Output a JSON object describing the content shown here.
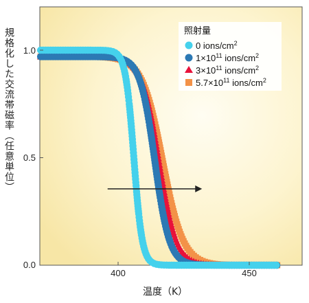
{
  "chart_data": {
    "type": "scatter",
    "xlabel": "温度（K）",
    "ylabel": "規格化した交流帯磁率（任意単位）",
    "xlim": [
      370,
      470
    ],
    "ylim": [
      0,
      1.2
    ],
    "xticks": [
      "400",
      "450"
    ],
    "yticks": [
      "0.0",
      "0.5",
      "1.0"
    ],
    "grid": false,
    "legend_position": "top-right",
    "legend_title": "照射量",
    "series": [
      {
        "name": "0 ions/cm2",
        "marker": "circle",
        "color": "#45d1ec",
        "x0": 406,
        "width": 1.6,
        "start": 1.0,
        "end": 0.0
      },
      {
        "name": "1×10^11 ions/cm2",
        "marker": "circle",
        "color": "#2c79b4",
        "x0": 414,
        "width": 2.8,
        "start": 0.97,
        "end": 0.0
      },
      {
        "name": "3×10^11 ions/cm2",
        "marker": "triangle",
        "color": "#e8123a",
        "x0": 415.5,
        "width": 3.3,
        "start": 0.97,
        "end": 0.0
      },
      {
        "name": "5.7×10^11 ions/cm2",
        "marker": "square",
        "color": "#f39248",
        "x0": 417,
        "width": 3.9,
        "start": 0.97,
        "end": 0.0
      }
    ],
    "annotations": [
      {
        "type": "arrow",
        "from": [
          396,
          0.355
        ],
        "to": [
          432,
          0.355
        ]
      }
    ]
  },
  "legend_items": {
    "s0": {
      "base": "0 ions/cm",
      "exp": "2"
    },
    "s1": {
      "base": "1×10",
      "sup1": "11",
      "mid": " ions/cm",
      "exp": "2"
    },
    "s2": {
      "base": "3×10",
      "sup1": "11",
      "mid": " ions/cm",
      "exp": "2"
    },
    "s3": {
      "base": "5.7×10",
      "sup1": "11",
      "mid": " ions/cm",
      "exp": "2"
    }
  }
}
